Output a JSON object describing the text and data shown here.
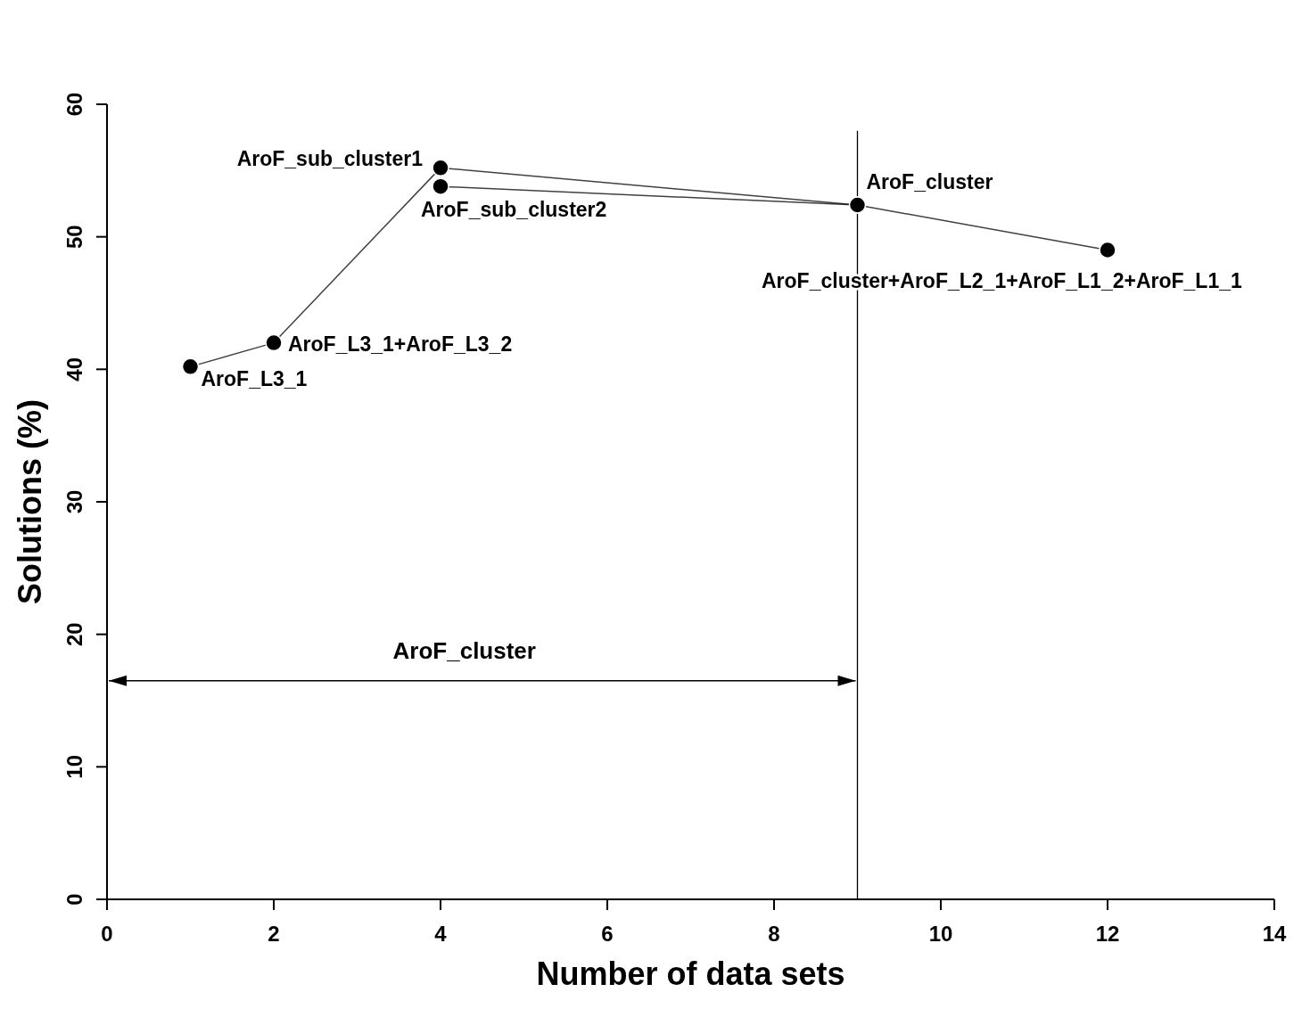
{
  "chart_data": {
    "type": "line",
    "xlabel": "Number of data sets",
    "ylabel": "Solutions (%)",
    "xlim": [
      0,
      14
    ],
    "xticks": [
      0,
      2,
      4,
      6,
      8,
      10,
      12,
      14
    ],
    "ylim": [
      0,
      60
    ],
    "yticks": [
      0,
      10,
      20,
      30,
      40,
      50,
      60
    ],
    "marker": "circle",
    "series": [
      {
        "color": "#000000",
        "x": [
          1,
          2,
          4,
          9,
          12
        ],
        "values": [
          40.2,
          42,
          55.2,
          52.4,
          49
        ]
      },
      {
        "color": "#000000",
        "x": [
          4,
          9
        ],
        "values": [
          53.8,
          52.4
        ]
      }
    ],
    "ref_lines": [
      {
        "axis": "x",
        "value": 9,
        "color": "#000000"
      }
    ],
    "annotations": [
      {
        "text": "AroF_L3_1",
        "x": 1,
        "y": 40.2
      },
      {
        "text": "AroF_L3_1+AroF_L3_2",
        "x": 2,
        "y": 42
      },
      {
        "text": "AroF_sub_cluster1",
        "x": 4,
        "y": 55.2
      },
      {
        "text": "AroF_sub_cluster2",
        "x": 4,
        "y": 53.8
      },
      {
        "text": "AroF_cluster",
        "x": 9,
        "y": 52.4
      },
      {
        "text": "AroF_cluster+AroF_L2_1+AroF_L1_2+AroF_L1_1",
        "x": 12,
        "y": 49
      },
      "AroF_cluster"
    ]
  }
}
